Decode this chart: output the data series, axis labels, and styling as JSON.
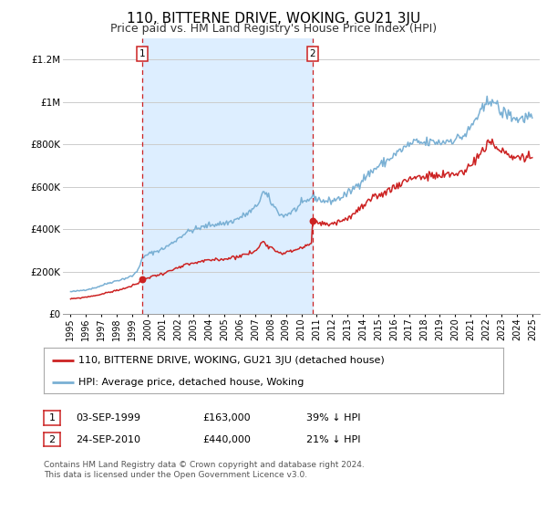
{
  "title": "110, BITTERNE DRIVE, WOKING, GU21 3JU",
  "subtitle": "Price paid vs. HM Land Registry's House Price Index (HPI)",
  "xlim": [
    1994.5,
    2025.5
  ],
  "ylim": [
    0,
    1300000
  ],
  "yticks": [
    0,
    200000,
    400000,
    600000,
    800000,
    1000000,
    1200000
  ],
  "ytick_labels": [
    "£0",
    "£200K",
    "£400K",
    "£600K",
    "£800K",
    "£1M",
    "£1.2M"
  ],
  "xtick_years": [
    1995,
    1996,
    1997,
    1998,
    1999,
    2000,
    2001,
    2002,
    2003,
    2004,
    2005,
    2006,
    2007,
    2008,
    2009,
    2010,
    2011,
    2012,
    2013,
    2014,
    2015,
    2016,
    2017,
    2018,
    2019,
    2020,
    2021,
    2022,
    2023,
    2024,
    2025
  ],
  "sale1_x": 1999.67,
  "sale1_y": 163000,
  "sale2_x": 2010.73,
  "sale2_y": 440000,
  "vline1_x": 1999.67,
  "vline2_x": 2010.73,
  "shade_color": "#ddeeff",
  "hpi_color": "#7ab0d4",
  "price_color": "#cc2222",
  "dot_color": "#cc2222",
  "grid_color": "#cccccc",
  "bg_color": "#ffffff",
  "legend_label1": "110, BITTERNE DRIVE, WOKING, GU21 3JU (detached house)",
  "legend_label2": "HPI: Average price, detached house, Woking",
  "table_row1": [
    "1",
    "03-SEP-1999",
    "£163,000",
    "39% ↓ HPI"
  ],
  "table_row2": [
    "2",
    "24-SEP-2010",
    "£440,000",
    "21% ↓ HPI"
  ],
  "footnote1": "Contains HM Land Registry data © Crown copyright and database right 2024.",
  "footnote2": "This data is licensed under the Open Government Licence v3.0.",
  "title_fontsize": 11,
  "subtitle_fontsize": 9,
  "axis_fontsize": 7.5,
  "legend_fontsize": 8,
  "table_fontsize": 8,
  "footnote_fontsize": 6.5
}
